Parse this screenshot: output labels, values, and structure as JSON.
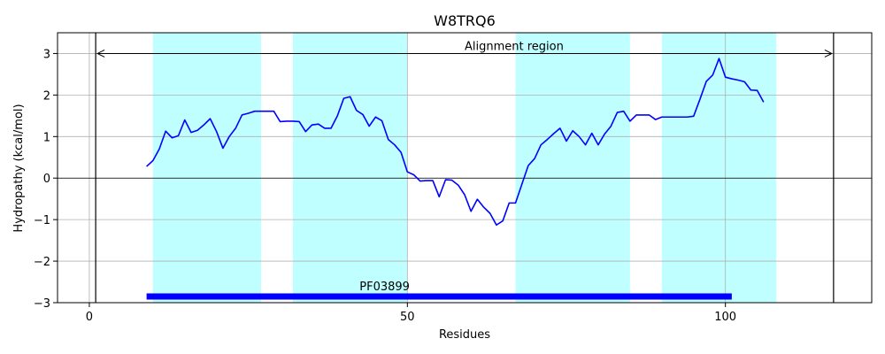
{
  "chart_data": {
    "type": "line",
    "title": "W8TRQ6",
    "xlabel": "Residues",
    "ylabel": "Hydropathy (kcal/mol)",
    "xlim": [
      -5,
      123
    ],
    "ylim": [
      -3,
      3.5
    ],
    "xticks": [
      0,
      50,
      100
    ],
    "yticks": [
      -3,
      -2,
      -1,
      0,
      1,
      2,
      3
    ],
    "grid": true,
    "colors": {
      "line": "#0000ff",
      "band": "#c0ffff",
      "domain_bar": "#0000ff",
      "axis": "#000000",
      "grid": "#b0b0b0"
    },
    "highlight_bands": [
      [
        10,
        27
      ],
      [
        32,
        50
      ],
      [
        67,
        85
      ],
      [
        90,
        108
      ]
    ],
    "vertical_lines": [
      1,
      117
    ],
    "hline": 0,
    "alignment_region": {
      "label": "Alignment region",
      "start": 1,
      "end": 117,
      "y": 3.0
    },
    "domains": [
      {
        "label": "PF03899",
        "start": 9,
        "end": 101,
        "y": -2.85
      }
    ],
    "series": [
      {
        "x": [
          9,
          10,
          11,
          12,
          13,
          14,
          15,
          16,
          17,
          18,
          19,
          20,
          21,
          22,
          23,
          24,
          25,
          26,
          27,
          28,
          29,
          30,
          31,
          32,
          33,
          34,
          35,
          36,
          37,
          38,
          39,
          40,
          41,
          42,
          43,
          44,
          45,
          46,
          47,
          48,
          49,
          50,
          51,
          52,
          53,
          54,
          55,
          56,
          57,
          58,
          59,
          60,
          61,
          62,
          63,
          64,
          65,
          66,
          67,
          68,
          69,
          70,
          71,
          72,
          73,
          74,
          75,
          76,
          77,
          78,
          79,
          80,
          81,
          82,
          83,
          84,
          85,
          86,
          87,
          88,
          89,
          90,
          91,
          92,
          93,
          94,
          95,
          96,
          97,
          98,
          99,
          100,
          101,
          102,
          103,
          104,
          105,
          106
        ],
        "values": [
          0.28,
          0.42,
          0.7,
          1.13,
          0.97,
          1.02,
          1.4,
          1.1,
          1.15,
          1.28,
          1.43,
          1.12,
          0.72,
          1.0,
          1.2,
          1.52,
          1.56,
          1.61,
          1.61,
          1.61,
          1.61,
          1.36,
          1.37,
          1.37,
          1.36,
          1.12,
          1.28,
          1.3,
          1.2,
          1.2,
          1.5,
          1.92,
          1.96,
          1.63,
          1.53,
          1.25,
          1.47,
          1.38,
          0.93,
          0.8,
          0.62,
          0.15,
          0.08,
          -0.07,
          -0.06,
          -0.06,
          -0.45,
          -0.04,
          -0.05,
          -0.17,
          -0.4,
          -0.8,
          -0.51,
          -0.7,
          -0.85,
          -1.13,
          -1.03,
          -0.6,
          -0.6,
          -0.15,
          0.3,
          0.47,
          0.8,
          0.93,
          1.07,
          1.2,
          0.89,
          1.14,
          1.0,
          0.8,
          1.08,
          0.8,
          1.06,
          1.25,
          1.58,
          1.61,
          1.37,
          1.52,
          1.52,
          1.52,
          1.41,
          1.47,
          1.47,
          1.47,
          1.47,
          1.47,
          1.49,
          1.9,
          2.33,
          2.48,
          2.88,
          2.43,
          2.39,
          2.36,
          2.32,
          2.12,
          2.11,
          1.83
        ]
      }
    ]
  }
}
